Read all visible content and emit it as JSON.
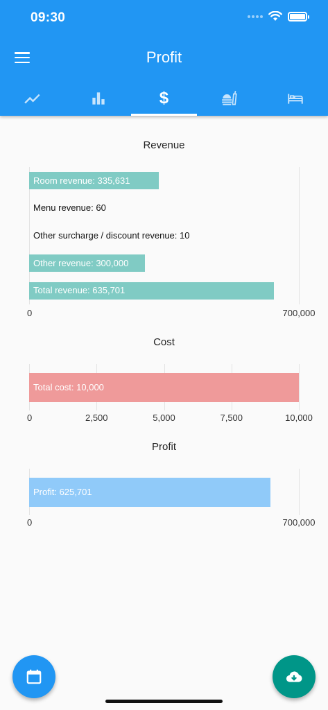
{
  "status": {
    "time": "09:30"
  },
  "appbar": {
    "title": "Profit"
  },
  "tabs": [
    {
      "icon": "trending-up-icon"
    },
    {
      "icon": "bar-chart-icon"
    },
    {
      "icon": "dollar-icon",
      "glyph": "$"
    },
    {
      "icon": "food-tray-icon"
    },
    {
      "icon": "bed-icon"
    }
  ],
  "colors": {
    "primary": "#2196f3",
    "revenue": "#80cbc4",
    "cost": "#ef9a9a",
    "profit": "#90caf9",
    "download": "#009688"
  },
  "chart_data": [
    {
      "type": "bar",
      "orientation": "horizontal",
      "title": "Revenue",
      "categories": [
        "Room revenue",
        "Menu revenue",
        "Other surcharge / discount revenue",
        "Other revenue",
        "Total revenue"
      ],
      "values": [
        335631,
        60,
        10,
        300000,
        635701
      ],
      "labels": [
        "Room revenue: 335,631",
        "Menu revenue: 60",
        "Other surcharge / discount revenue: 10",
        "Other revenue: 300,000",
        "Total revenue: 635,701"
      ],
      "xlim": [
        0,
        700000
      ],
      "ticks": [
        "0",
        "700,000"
      ],
      "grid": true
    },
    {
      "type": "bar",
      "orientation": "horizontal",
      "title": "Cost",
      "categories": [
        "Total cost"
      ],
      "values": [
        10000
      ],
      "labels": [
        "Total cost: 10,000"
      ],
      "xlim": [
        0,
        10000
      ],
      "ticks": [
        "0",
        "2,500",
        "5,000",
        "7,500",
        "10,000"
      ],
      "grid": true
    },
    {
      "type": "bar",
      "orientation": "horizontal",
      "title": "Profit",
      "categories": [
        "Profit"
      ],
      "values": [
        625701
      ],
      "labels": [
        "Profit: 625,701"
      ],
      "xlim": [
        0,
        700000
      ],
      "ticks": [
        "0",
        "700,000"
      ],
      "grid": true
    }
  ],
  "fabs": {
    "left_icon": "calendar-icon",
    "right_icon": "cloud-download-icon"
  }
}
